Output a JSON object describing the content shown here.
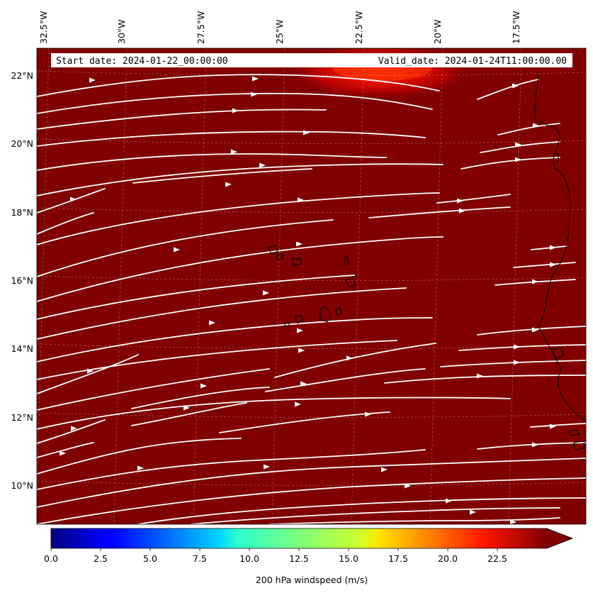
{
  "map": {
    "start_date_label": "Start date: 2024-01-22_00:00:00",
    "valid_date_label": "Valid_date: 2024-01-24T11:00:00.00",
    "lon_ticks": [
      "32.5°W",
      "30°W",
      "27.5°W",
      "25°W",
      "22.5°W",
      "20°W",
      "17.5°W"
    ],
    "lat_ticks": [
      "22°N",
      "20°N",
      "18°N",
      "16°N",
      "14°N",
      "12°N",
      "10°N"
    ],
    "field_color": "#800000",
    "streamline_color": "#ffffff",
    "coastline_color": "#000000",
    "gridline_style": "dashed"
  },
  "colorbar": {
    "label": "200 hPa windspeed (m/s)",
    "tick_labels": [
      "0.0",
      "2.5",
      "5.0",
      "7.5",
      "10.0",
      "12.5",
      "15.0",
      "17.5",
      "20.0",
      "22.5"
    ],
    "min": 0,
    "max": 25,
    "extend": "max",
    "colormap": "jet"
  }
}
